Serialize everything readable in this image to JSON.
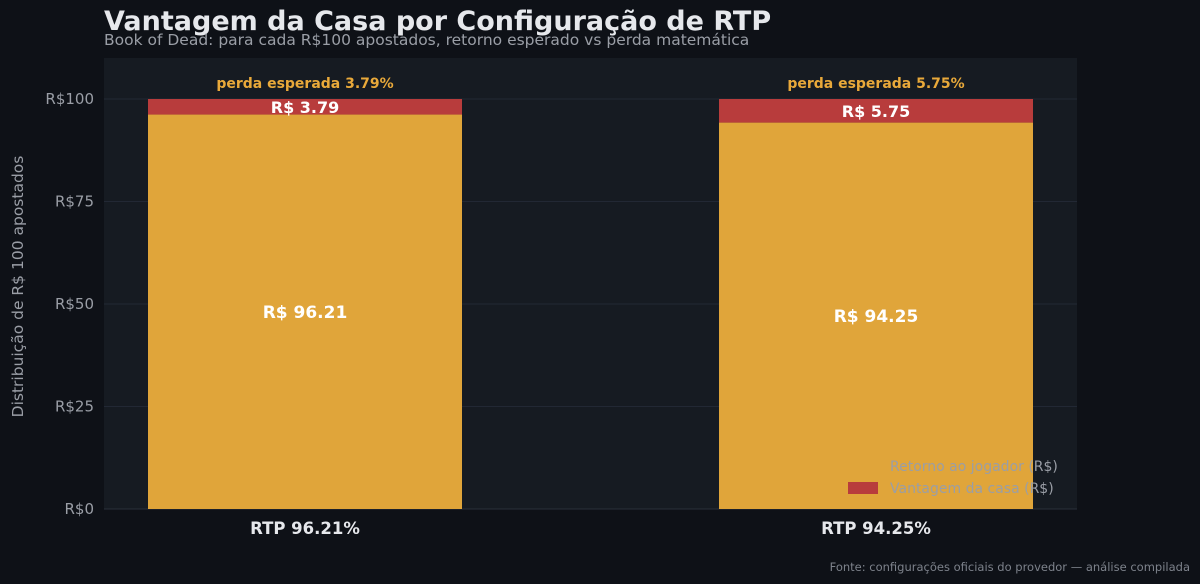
{
  "title": "Vantagem da Casa por Configuração de RTP",
  "subtitle": "Book of Dead: para cada R$100 apostados, retorno esperado vs perda matemática",
  "footer": "Fonte: configurações oficiais do provedor — análise compilada",
  "colors": {
    "background": "#0e1117",
    "plot_background": "#161b22",
    "player_return": "#e0a53a",
    "house_edge": "#b83c3c",
    "annotation": "#e9a93a",
    "grid": "#222834",
    "tick_text": "#9a9ea6",
    "bar_label_text": "#ffffff"
  },
  "chart_data": {
    "type": "bar",
    "stacked": true,
    "categories": [
      "RTP 96.21%",
      "RTP 94.25%"
    ],
    "series": [
      {
        "name": "Retorno ao jogador (R$)",
        "values": [
          96.21,
          94.25
        ],
        "color": "#e0a53a"
      },
      {
        "name": "Vantagem da casa (R$)",
        "values": [
          3.79,
          5.75
        ],
        "color": "#b83c3c"
      }
    ],
    "bar_labels": {
      "player_return": [
        "R$ 96.21",
        "R$ 94.25"
      ],
      "house_edge": [
        "R$ 3.79",
        "R$ 5.75"
      ]
    },
    "annotations": [
      "perda esperada 3.79%",
      "perda esperada 5.75%"
    ],
    "ylabel": "Distribuição de R$ 100 apostados",
    "xlabel": "",
    "ylim": [
      0,
      110
    ],
    "yticks": [
      0,
      25,
      50,
      75,
      100
    ],
    "ytick_labels": [
      "R$0",
      "R$25",
      "R$50",
      "R$75",
      "R$100"
    ],
    "grid": true,
    "legend_position": "bottom-right"
  }
}
